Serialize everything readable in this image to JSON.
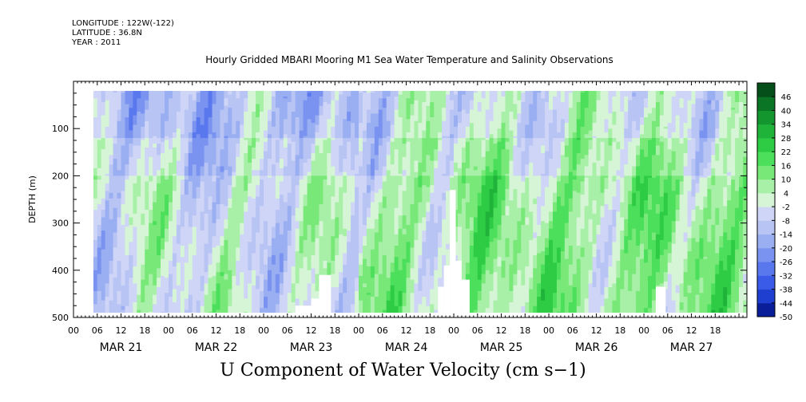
{
  "header": {
    "longitude": "LONGITUDE : 122W(-122)",
    "latitude": "LATITUDE : 36.8N",
    "year": "YEAR : 2011",
    "title": "Hourly Gridded MBARI Mooring M1 Sea Water Temperature and Salinity Observations"
  },
  "chart_data": {
    "type": "heatmap",
    "title": "Hourly Gridded MBARI Mooring M1 Sea Water Temperature and Salinity Observations",
    "variable": "U Component of Water Velocity (cm s-1)",
    "xlabel": "",
    "ylabel": "DEPTH (m)",
    "x_start_hour": 0,
    "x_end_hour": 170,
    "y_range": [
      0,
      500
    ],
    "y_reversed": true,
    "y_ticks": [
      100,
      200,
      300,
      400,
      500
    ],
    "x_hour_ticks": [
      "00",
      "06",
      "12",
      "18",
      "00",
      "06",
      "12",
      "18",
      "00",
      "06",
      "12",
      "18",
      "00",
      "06",
      "12",
      "18",
      "00",
      "06",
      "12",
      "18",
      "00",
      "06",
      "12",
      "18",
      "00",
      "06",
      "12",
      "18"
    ],
    "day_labels": [
      "MAR 21",
      "MAR 22",
      "MAR 23",
      "MAR 24",
      "MAR 25",
      "MAR 26",
      "MAR 27"
    ],
    "colorbar": {
      "ticks": [
        "46",
        "40",
        "34",
        "28",
        "22",
        "16",
        "10",
        "4",
        "-2",
        "-8",
        "-14",
        "-20",
        "-26",
        "-32",
        "-38",
        "-44",
        "-50"
      ],
      "range": [
        -50,
        52
      ],
      "negative_colors": [
        "#000066",
        "#0b1e9a",
        "#1f3fd0",
        "#3a5ae8",
        "#5a78ee",
        "#7a93f0",
        "#9aaef2",
        "#b8c4f4",
        "#cfd5f6"
      ],
      "positive_colors": [
        "#d6f5d6",
        "#a8f0a8",
        "#78e878",
        "#4cdf5c",
        "#2ecc45",
        "#20b33a",
        "#14962f",
        "#0a7524",
        "#05501a"
      ]
    },
    "data_gaps": [
      {
        "from_hour": 0,
        "to_hour": 5,
        "from_depth": 0,
        "to_depth": 500
      },
      {
        "from_hour": 56,
        "to_hour": 60,
        "from_depth": 475,
        "to_depth": 500
      },
      {
        "from_hour": 60,
        "to_hour": 62,
        "from_depth": 460,
        "to_depth": 500
      },
      {
        "from_hour": 62,
        "to_hour": 65,
        "from_depth": 410,
        "to_depth": 500
      },
      {
        "from_hour": 92,
        "to_hour": 93.5,
        "from_depth": 435,
        "to_depth": 500
      },
      {
        "from_hour": 93.5,
        "to_hour": 95,
        "from_depth": 390,
        "to_depth": 500
      },
      {
        "from_hour": 95,
        "to_hour": 96.5,
        "from_depth": 230,
        "to_depth": 500
      },
      {
        "from_hour": 96.5,
        "to_hour": 98,
        "from_depth": 380,
        "to_depth": 500
      },
      {
        "from_hour": 98,
        "to_hour": 100,
        "from_depth": 420,
        "to_depth": 500
      },
      {
        "from_hour": 147,
        "to_hour": 149.5,
        "from_depth": 435,
        "to_depth": 500
      }
    ],
    "pattern_note": "U velocity roughly -30 to +30; mostly negative (blue) in upper 100 m, positive (green) 200-400 m from MAR 24 to MAR 27"
  },
  "bottom_title": "U Component of Water Velocity (cm s−1)"
}
